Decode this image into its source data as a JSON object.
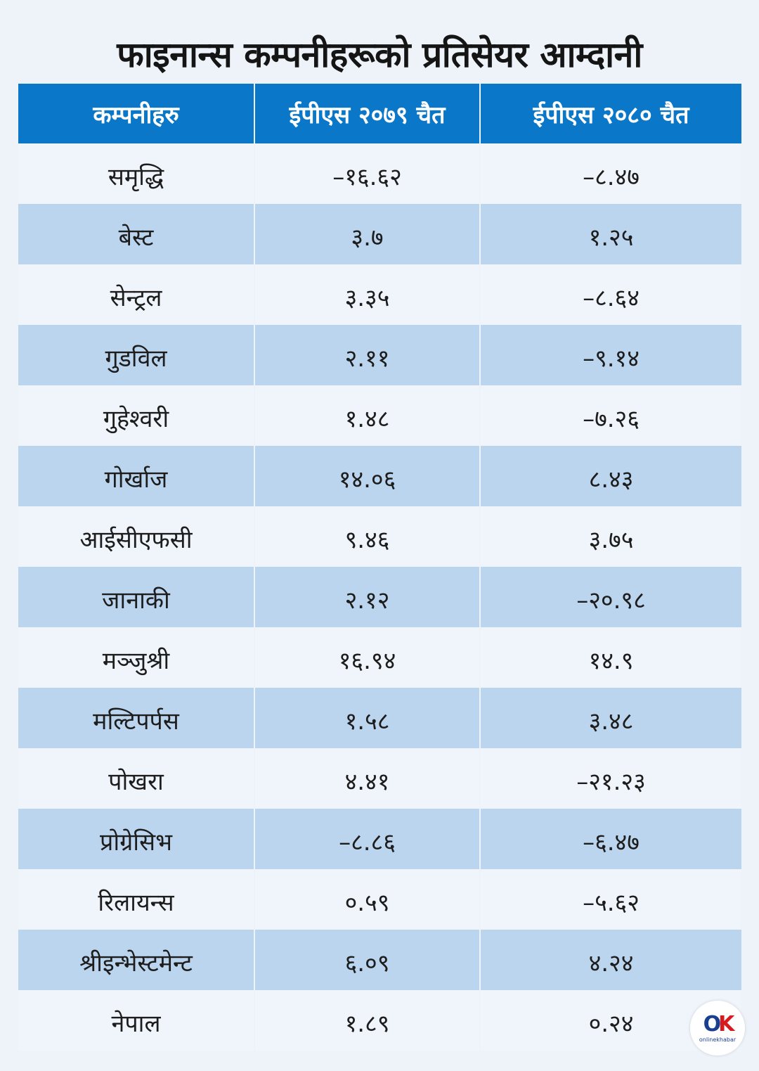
{
  "title": "फाइनान्स कम्पनीहरूको प्रतिसेयर आम्दानी",
  "logo": {
    "mark_o": "O",
    "mark_k": "K",
    "text": "onlinekhabar"
  },
  "colors": {
    "header": "#0a77c8",
    "row_alt": "#bcd5ee",
    "row": "#f0f5fb"
  },
  "chart_data": {
    "type": "table",
    "columns": [
      "कम्पनीहरु",
      "ईपीएस २०७९ चैत",
      "ईपीएस २०८० चैत"
    ],
    "rows": [
      [
        "समृद्धि",
        "–१६.६२",
        "–८.४७"
      ],
      [
        "बेस्ट",
        "३.७",
        "१.२५"
      ],
      [
        "सेन्ट्रल",
        "३.३५",
        "–८.६४"
      ],
      [
        "गुडविल",
        "२.११",
        "–९.१४"
      ],
      [
        "गुहेश्वरी",
        "१.४८",
        "–७.२६"
      ],
      [
        "गोर्खाज",
        "१४.०६",
        "८.४३"
      ],
      [
        "आईसीएफसी",
        "९.४६",
        "३.७५"
      ],
      [
        "जानाकी",
        "२.१२",
        "–२०.९८"
      ],
      [
        "मञ्जुश्री",
        "१६.९४",
        "१४.९"
      ],
      [
        "मल्टिपर्पस",
        "१.५८",
        "३.४८"
      ],
      [
        "पोखरा",
        "४.४१",
        "–२१.२३"
      ],
      [
        "प्रोग्रेसिभ",
        "–८.८६",
        "–६.४७"
      ],
      [
        "रिलायन्स",
        "०.५९",
        "–५.६२"
      ],
      [
        "श्रीइन्भेस्टमेन्ट",
        "६.०९",
        "४.२४"
      ],
      [
        "नेपाल",
        "१.८९",
        "०.२४"
      ]
    ]
  }
}
